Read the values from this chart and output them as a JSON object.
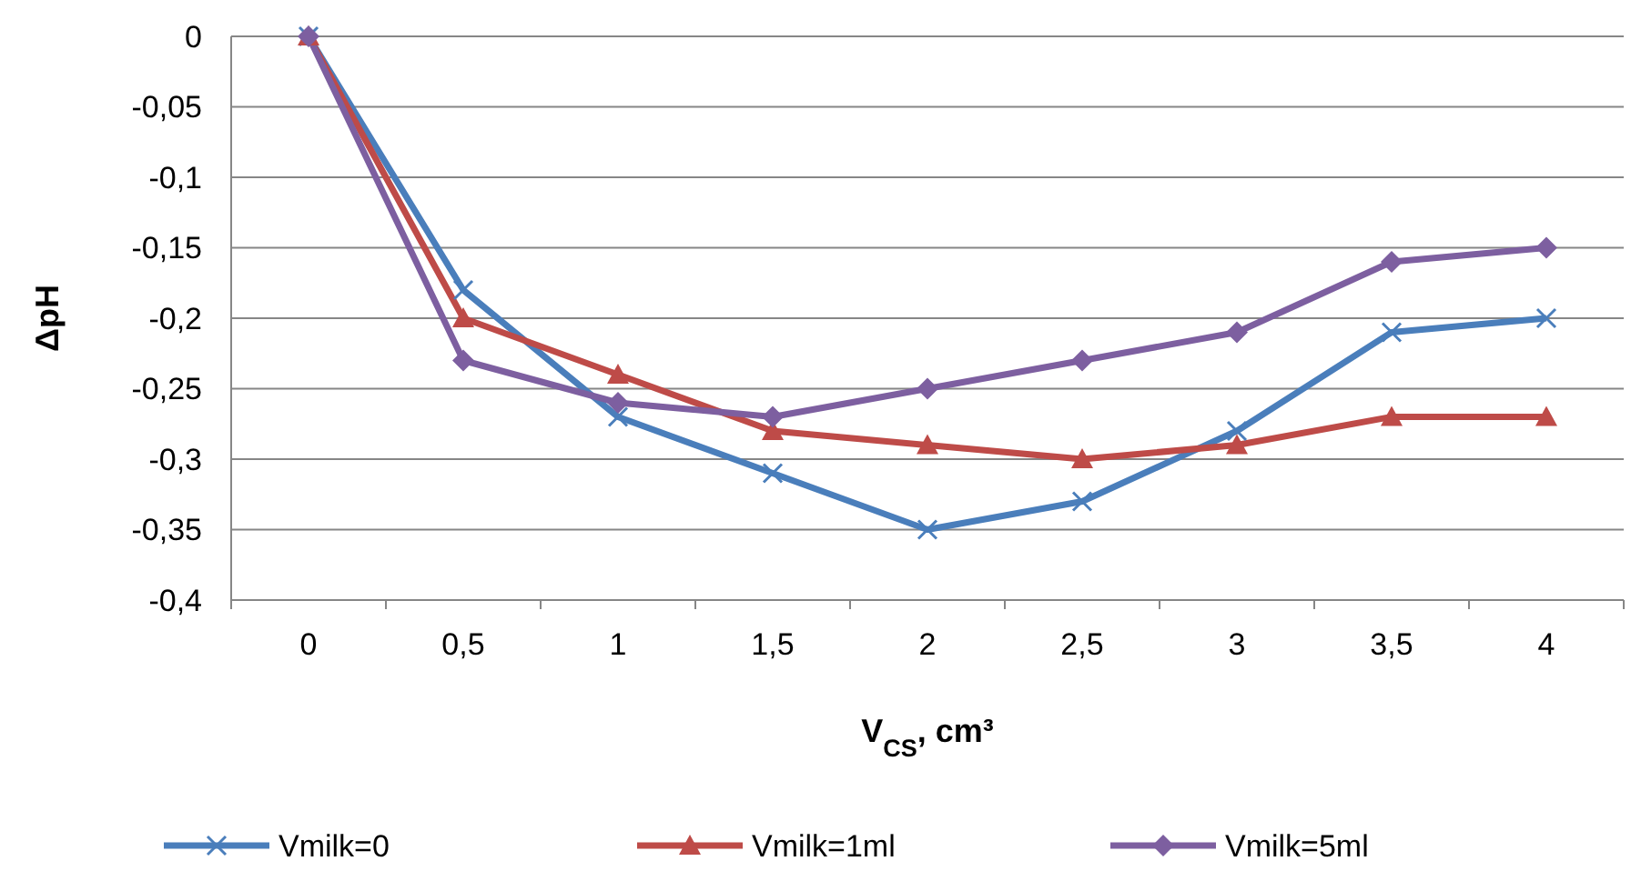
{
  "chart_data": {
    "type": "line",
    "xlabel": "V$_{CS}$, cm³",
    "ylabel": "ΔpH",
    "categories": [
      "0",
      "0,5",
      "1",
      "1,5",
      "2",
      "2,5",
      "3",
      "3,5",
      "4"
    ],
    "series": [
      {
        "name": "Vmilk=0",
        "color": "#4a7ebb",
        "marker": "cross",
        "values": [
          0,
          -0.18,
          -0.27,
          -0.31,
          -0.35,
          -0.33,
          -0.28,
          -0.21,
          -0.2
        ]
      },
      {
        "name": "Vmilk=1ml",
        "color": "#be4b48",
        "marker": "triangle",
        "values": [
          0,
          -0.2,
          -0.24,
          -0.28,
          -0.29,
          -0.3,
          -0.29,
          -0.27,
          -0.27
        ]
      },
      {
        "name": "Vmilk=5ml",
        "color": "#7d5fa0",
        "marker": "diamond",
        "values": [
          0,
          -0.23,
          -0.26,
          -0.27,
          -0.25,
          -0.23,
          -0.21,
          -0.16,
          -0.15
        ]
      }
    ],
    "ylim": [
      -0.4,
      0
    ],
    "yticks": [
      0,
      {
        "value": -0.05,
        "label": "-0,05"
      },
      {
        "value": -0.1,
        "label": "-0,1"
      },
      {
        "value": -0.15,
        "label": "-0,15"
      },
      {
        "value": -0.2,
        "label": "-0,2"
      },
      {
        "value": -0.25,
        "label": "-0,25"
      },
      {
        "value": -0.3,
        "label": "-0,3"
      },
      {
        "value": -0.35,
        "label": "-0,35"
      },
      {
        "value": -0.4,
        "label": "-0,4"
      }
    ],
    "grid": "y",
    "legend": "bottom",
    "line_style": "solid"
  }
}
